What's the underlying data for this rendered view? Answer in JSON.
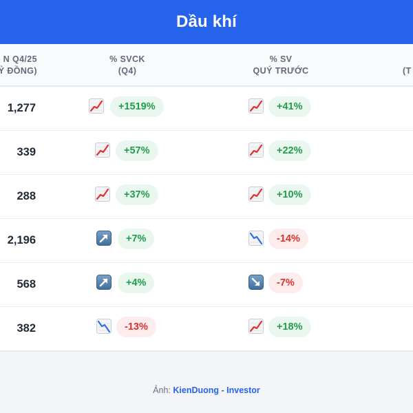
{
  "header": {
    "title": "Dầu khí"
  },
  "table": {
    "columns": {
      "revenue": {
        "line1": "N Q4/25",
        "line2": "Ỷ ĐỒNG)"
      },
      "yoy": {
        "line1": "% SVCK",
        "line2": "(Q4)"
      },
      "qoq": {
        "line1": "% SV",
        "line2": "QUÝ TRƯỚC"
      },
      "next": {
        "line1": "(T"
      }
    },
    "rows": [
      {
        "revenue": "1,277",
        "yoy": {
          "value": "+1519%",
          "dir": "up",
          "icon": "chart-increasing-icon"
        },
        "qoq": {
          "value": "+41%",
          "dir": "up",
          "icon": "chart-increasing-icon"
        }
      },
      {
        "revenue": "339",
        "yoy": {
          "value": "+57%",
          "dir": "up",
          "icon": "chart-increasing-icon"
        },
        "qoq": {
          "value": "+22%",
          "dir": "up",
          "icon": "chart-increasing-icon"
        }
      },
      {
        "revenue": "288",
        "yoy": {
          "value": "+37%",
          "dir": "up",
          "icon": "chart-increasing-icon"
        },
        "qoq": {
          "value": "+10%",
          "dir": "up",
          "icon": "chart-increasing-icon"
        }
      },
      {
        "revenue": "2,196",
        "yoy": {
          "value": "+7%",
          "dir": "up",
          "icon": "up-right-arrow-icon"
        },
        "qoq": {
          "value": "-14%",
          "dir": "down",
          "icon": "chart-decreasing-icon"
        }
      },
      {
        "revenue": "568",
        "yoy": {
          "value": "+4%",
          "dir": "up",
          "icon": "up-right-arrow-icon"
        },
        "qoq": {
          "value": "-7%",
          "dir": "down",
          "icon": "down-right-arrow-icon"
        }
      },
      {
        "revenue": "382",
        "yoy": {
          "value": "-13%",
          "dir": "down",
          "icon": "chart-decreasing-icon"
        },
        "qoq": {
          "value": "+18%",
          "dir": "up",
          "icon": "chart-increasing-icon"
        }
      }
    ]
  },
  "footer": {
    "prefix": "Ảnh:",
    "author": "KienDuong - Investor"
  },
  "colors": {
    "header_bg": "#2563eb",
    "up_text": "#1f9d4c",
    "up_bg": "#eaf7ee",
    "down_text": "#dc2f2f",
    "down_bg": "#fdecec"
  }
}
